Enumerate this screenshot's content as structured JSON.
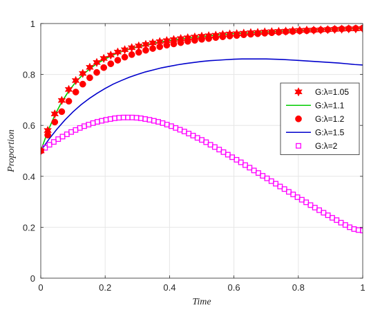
{
  "chart_data": {
    "type": "line",
    "title": "",
    "xlabel": "Time",
    "ylabel": "Proportion",
    "xlim": [
      0,
      1
    ],
    "ylim": [
      0,
      1
    ],
    "grid": true,
    "legend_position": "right",
    "x_ticks": [
      "0",
      "0.2",
      "0.4",
      "0.6",
      "0.8",
      "1"
    ],
    "y_ticks": [
      "0",
      "0.2",
      "0.4",
      "0.6",
      "0.8",
      "1"
    ],
    "series": [
      {
        "name": "G:λ=1.05",
        "marker": "hexagram",
        "color": "#ff0000",
        "x": [
          0,
          0.0217,
          0.0435,
          0.0652,
          0.087,
          0.1087,
          0.1304,
          0.1522,
          0.1739,
          0.1957,
          0.2174,
          0.2391,
          0.2609,
          0.2826,
          0.3043,
          0.3261,
          0.3478,
          0.3696,
          0.3913,
          0.413,
          0.4348,
          0.4565,
          0.4783,
          0.5,
          0.5217,
          0.5435,
          0.5652,
          0.587,
          0.6087,
          0.6304,
          0.6522,
          0.6739,
          0.6957,
          0.7174,
          0.7391,
          0.7609,
          0.7826,
          0.8043,
          0.8261,
          0.8478,
          0.8696,
          0.8913,
          0.913,
          0.9348,
          0.9565,
          0.9783,
          1.0
        ],
        "y": [
          0.5,
          0.58,
          0.645,
          0.698,
          0.741,
          0.776,
          0.804,
          0.828,
          0.847,
          0.863,
          0.876,
          0.888,
          0.897,
          0.905,
          0.912,
          0.918,
          0.924,
          0.929,
          0.933,
          0.937,
          0.941,
          0.944,
          0.947,
          0.95,
          0.952,
          0.954,
          0.957,
          0.959,
          0.96,
          0.962,
          0.964,
          0.965,
          0.967,
          0.968,
          0.969,
          0.97,
          0.972,
          0.973,
          0.974,
          0.974,
          0.975,
          0.976,
          0.977,
          0.978,
          0.979,
          0.979,
          0.98
        ]
      },
      {
        "name": "G:λ=1.1",
        "marker": "line",
        "color": "#00cc00",
        "x": [
          0,
          0.0217,
          0.0435,
          0.0652,
          0.087,
          0.1087,
          0.1304,
          0.1522,
          0.1739,
          0.1957,
          0.2174,
          0.2391,
          0.2609,
          0.2826,
          0.3043,
          0.3261,
          0.3478,
          0.3696,
          0.3913,
          0.413,
          0.4348,
          0.4565,
          0.4783,
          0.5,
          0.5217,
          0.5435,
          0.5652,
          0.587,
          0.6087,
          0.6304,
          0.6522,
          0.6739,
          0.6957,
          0.7174,
          0.7391,
          0.7609,
          0.7826,
          0.8043,
          0.8261,
          0.8478,
          0.8696,
          0.8913,
          0.913,
          0.9348,
          0.9565,
          0.9783,
          1.0
        ],
        "y": [
          0.5,
          0.576,
          0.64,
          0.692,
          0.735,
          0.77,
          0.799,
          0.822,
          0.842,
          0.858,
          0.872,
          0.884,
          0.894,
          0.902,
          0.91,
          0.916,
          0.922,
          0.927,
          0.932,
          0.936,
          0.94,
          0.943,
          0.946,
          0.949,
          0.952,
          0.954,
          0.957,
          0.959,
          0.961,
          0.962,
          0.964,
          0.966,
          0.967,
          0.968,
          0.97,
          0.971,
          0.972,
          0.973,
          0.974,
          0.975,
          0.976,
          0.977,
          0.978,
          0.979,
          0.979,
          0.98,
          0.981
        ]
      },
      {
        "name": "G:λ=1.2",
        "marker": "circle",
        "color": "#ff0000",
        "x": [
          0,
          0.0217,
          0.0435,
          0.0652,
          0.087,
          0.1087,
          0.1304,
          0.1522,
          0.1739,
          0.1957,
          0.2174,
          0.2391,
          0.2609,
          0.2826,
          0.3043,
          0.3261,
          0.3478,
          0.3696,
          0.3913,
          0.413,
          0.4348,
          0.4565,
          0.4783,
          0.5,
          0.5217,
          0.5435,
          0.5652,
          0.587,
          0.6087,
          0.6304,
          0.6522,
          0.6739,
          0.6957,
          0.7174,
          0.7391,
          0.7609,
          0.7826,
          0.8043,
          0.8261,
          0.8478,
          0.8696,
          0.8913,
          0.913,
          0.9348,
          0.9565,
          0.9783,
          1.0
        ],
        "y": [
          0.5,
          0.562,
          0.613,
          0.654,
          0.695,
          0.731,
          0.762,
          0.787,
          0.808,
          0.827,
          0.842,
          0.856,
          0.868,
          0.878,
          0.887,
          0.895,
          0.902,
          0.909,
          0.915,
          0.92,
          0.925,
          0.93,
          0.934,
          0.938,
          0.941,
          0.945,
          0.948,
          0.951,
          0.953,
          0.956,
          0.958,
          0.96,
          0.962,
          0.964,
          0.966,
          0.968,
          0.969,
          0.971,
          0.972,
          0.974,
          0.975,
          0.976,
          0.978,
          0.979,
          0.98,
          0.981,
          0.982
        ]
      },
      {
        "name": "G:λ=1.5",
        "marker": "line",
        "color": "#0000cc",
        "x": [
          0,
          0.025,
          0.05,
          0.075,
          0.1,
          0.125,
          0.15,
          0.175,
          0.2,
          0.225,
          0.25,
          0.275,
          0.3,
          0.325,
          0.35,
          0.375,
          0.4,
          0.425,
          0.45,
          0.475,
          0.5,
          0.525,
          0.55,
          0.575,
          0.6,
          0.625,
          0.65,
          0.675,
          0.7,
          0.725,
          0.75,
          0.775,
          0.8,
          0.825,
          0.85,
          0.875,
          0.9,
          0.925,
          0.95,
          0.975,
          1.0
        ],
        "y": [
          0.5,
          0.545,
          0.585,
          0.621,
          0.653,
          0.681,
          0.705,
          0.726,
          0.745,
          0.762,
          0.776,
          0.789,
          0.8,
          0.81,
          0.818,
          0.826,
          0.832,
          0.838,
          0.843,
          0.847,
          0.851,
          0.854,
          0.856,
          0.858,
          0.86,
          0.861,
          0.861,
          0.861,
          0.861,
          0.86,
          0.859,
          0.857,
          0.855,
          0.853,
          0.851,
          0.849,
          0.847,
          0.845,
          0.842,
          0.839,
          0.837
        ]
      },
      {
        "name": "G:λ=2",
        "marker": "square",
        "color": "#ff00ff",
        "x": [
          0,
          0.0135,
          0.027,
          0.0405,
          0.0541,
          0.0676,
          0.0811,
          0.0946,
          0.1081,
          0.1216,
          0.1351,
          0.1486,
          0.1622,
          0.1757,
          0.1892,
          0.2027,
          0.2162,
          0.2297,
          0.2432,
          0.2568,
          0.2703,
          0.2838,
          0.2973,
          0.3108,
          0.3243,
          0.3378,
          0.3514,
          0.3649,
          0.3784,
          0.3919,
          0.4054,
          0.4189,
          0.4324,
          0.4459,
          0.4595,
          0.473,
          0.4865,
          0.5,
          0.5135,
          0.527,
          0.5405,
          0.5541,
          0.5676,
          0.5811,
          0.5946,
          0.6081,
          0.6216,
          0.6351,
          0.6486,
          0.6622,
          0.6757,
          0.6892,
          0.7027,
          0.7162,
          0.7297,
          0.7432,
          0.7568,
          0.7703,
          0.7838,
          0.7973,
          0.8108,
          0.8243,
          0.8378,
          0.8514,
          0.8649,
          0.8784,
          0.8919,
          0.9054,
          0.9189,
          0.9324,
          0.9459,
          0.9595,
          0.973,
          0.9865,
          1.0
        ],
        "y": [
          0.5,
          0.512,
          0.524,
          0.535,
          0.546,
          0.556,
          0.565,
          0.574,
          0.582,
          0.59,
          0.597,
          0.603,
          0.609,
          0.614,
          0.618,
          0.622,
          0.625,
          0.628,
          0.63,
          0.631,
          0.631,
          0.631,
          0.63,
          0.628,
          0.625,
          0.622,
          0.618,
          0.614,
          0.609,
          0.603,
          0.597,
          0.59,
          0.583,
          0.576,
          0.568,
          0.56,
          0.551,
          0.543,
          0.534,
          0.524,
          0.515,
          0.505,
          0.495,
          0.485,
          0.475,
          0.465,
          0.455,
          0.444,
          0.434,
          0.423,
          0.413,
          0.402,
          0.392,
          0.381,
          0.371,
          0.36,
          0.35,
          0.339,
          0.329,
          0.318,
          0.308,
          0.298,
          0.287,
          0.277,
          0.267,
          0.257,
          0.247,
          0.237,
          0.228,
          0.218,
          0.209,
          0.2,
          0.193,
          0.189,
          0.187
        ]
      }
    ]
  }
}
